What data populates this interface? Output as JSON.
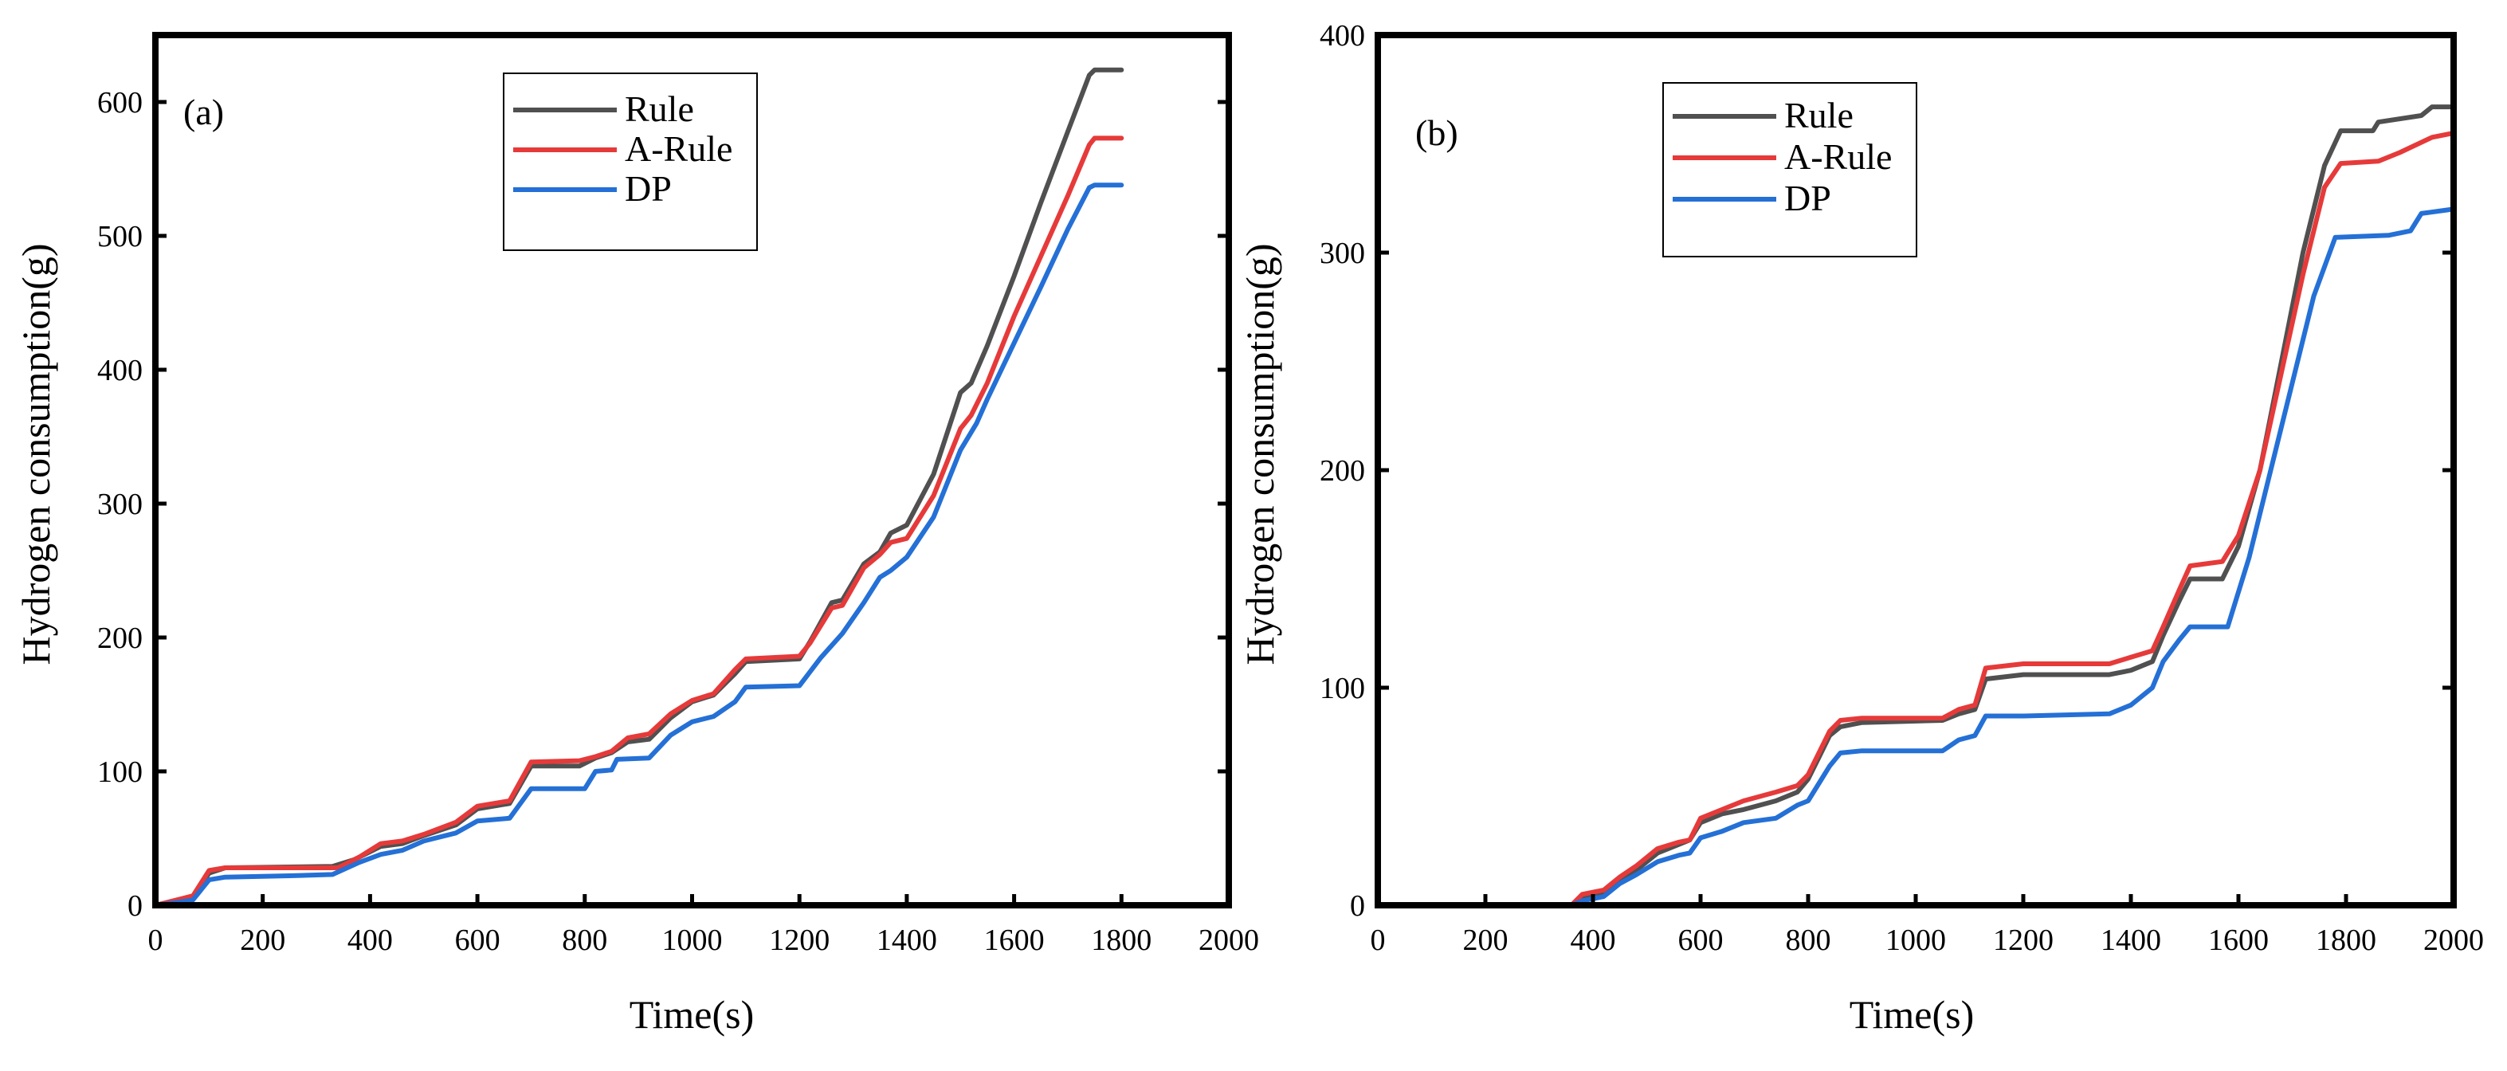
{
  "chart_data": [
    {
      "type": "line",
      "panel_label": "(a)",
      "xlabel": "Time(s)",
      "ylabel": "Hydrogen consumption(g)",
      "xlim": [
        0,
        2000
      ],
      "ylim": [
        0,
        650
      ],
      "xticks": [
        0,
        200,
        400,
        600,
        800,
        1000,
        1200,
        1400,
        1600,
        1800,
        2000
      ],
      "yticks": [
        0,
        100,
        200,
        300,
        400,
        500,
        600
      ],
      "legend_position": "top-center",
      "series": [
        {
          "name": "Rule",
          "color": "#505050",
          "points": [
            [
              0,
              0
            ],
            [
              40,
              3
            ],
            [
              70,
              6
            ],
            [
              100,
              24
            ],
            [
              130,
              28
            ],
            [
              330,
              29
            ],
            [
              370,
              34
            ],
            [
              420,
              44
            ],
            [
              460,
              46
            ],
            [
              500,
              52
            ],
            [
              560,
              60
            ],
            [
              600,
              72
            ],
            [
              660,
              76
            ],
            [
              700,
              104
            ],
            [
              790,
              104
            ],
            [
              820,
              110
            ],
            [
              850,
              114
            ],
            [
              880,
              122
            ],
            [
              920,
              124
            ],
            [
              960,
              140
            ],
            [
              1000,
              152
            ],
            [
              1040,
              157
            ],
            [
              1080,
              173
            ],
            [
              1100,
              182
            ],
            [
              1200,
              184
            ],
            [
              1220,
              197
            ],
            [
              1260,
              226
            ],
            [
              1280,
              228
            ],
            [
              1320,
              255
            ],
            [
              1350,
              264
            ],
            [
              1370,
              278
            ],
            [
              1400,
              284
            ],
            [
              1450,
              322
            ],
            [
              1500,
              383
            ],
            [
              1520,
              390
            ],
            [
              1550,
              418
            ],
            [
              1600,
              470
            ],
            [
              1650,
              525
            ],
            [
              1700,
              578
            ],
            [
              1740,
              620
            ],
            [
              1750,
              624
            ],
            [
              1800,
              624
            ]
          ]
        },
        {
          "name": "A-Rule",
          "color": "#e63a3a",
          "points": [
            [
              0,
              0
            ],
            [
              40,
              4
            ],
            [
              70,
              7
            ],
            [
              100,
              26
            ],
            [
              130,
              28
            ],
            [
              340,
              28
            ],
            [
              380,
              36
            ],
            [
              420,
              46
            ],
            [
              460,
              48
            ],
            [
              500,
              53
            ],
            [
              560,
              62
            ],
            [
              600,
              74
            ],
            [
              660,
              78
            ],
            [
              700,
              107
            ],
            [
              790,
              108
            ],
            [
              820,
              111
            ],
            [
              850,
              115
            ],
            [
              880,
              125
            ],
            [
              920,
              128
            ],
            [
              960,
              143
            ],
            [
              1000,
              153
            ],
            [
              1040,
              158
            ],
            [
              1080,
              176
            ],
            [
              1100,
              184
            ],
            [
              1200,
              186
            ],
            [
              1220,
              196
            ],
            [
              1260,
              222
            ],
            [
              1280,
              224
            ],
            [
              1320,
              252
            ],
            [
              1350,
              262
            ],
            [
              1370,
              271
            ],
            [
              1400,
              274
            ],
            [
              1450,
              306
            ],
            [
              1500,
              356
            ],
            [
              1520,
              366
            ],
            [
              1550,
              390
            ],
            [
              1600,
              440
            ],
            [
              1650,
              485
            ],
            [
              1700,
              530
            ],
            [
              1740,
              568
            ],
            [
              1750,
              573
            ],
            [
              1800,
              573
            ]
          ]
        },
        {
          "name": "DP",
          "color": "#2470d6",
          "points": [
            [
              0,
              0
            ],
            [
              40,
              2
            ],
            [
              70,
              4
            ],
            [
              100,
              19
            ],
            [
              130,
              21
            ],
            [
              250,
              22
            ],
            [
              330,
              23
            ],
            [
              380,
              32
            ],
            [
              420,
              38
            ],
            [
              460,
              41
            ],
            [
              500,
              48
            ],
            [
              560,
              54
            ],
            [
              600,
              63
            ],
            [
              660,
              65
            ],
            [
              700,
              87
            ],
            [
              800,
              87
            ],
            [
              820,
              100
            ],
            [
              850,
              101
            ],
            [
              860,
              109
            ],
            [
              920,
              110
            ],
            [
              960,
              127
            ],
            [
              1000,
              137
            ],
            [
              1040,
              141
            ],
            [
              1080,
              152
            ],
            [
              1100,
              163
            ],
            [
              1200,
              164
            ],
            [
              1240,
              185
            ],
            [
              1280,
              203
            ],
            [
              1320,
              226
            ],
            [
              1350,
              245
            ],
            [
              1370,
              250
            ],
            [
              1400,
              260
            ],
            [
              1450,
              290
            ],
            [
              1500,
              340
            ],
            [
              1530,
              360
            ],
            [
              1550,
              378
            ],
            [
              1600,
              420
            ],
            [
              1650,
              462
            ],
            [
              1700,
              505
            ],
            [
              1740,
              536
            ],
            [
              1750,
              538
            ],
            [
              1800,
              538
            ]
          ]
        }
      ]
    },
    {
      "type": "line",
      "panel_label": "(b)",
      "xlabel": "Time(s)",
      "ylabel": "Hydrogen consumption(g)",
      "xlim": [
        0,
        2000
      ],
      "ylim": [
        0,
        400
      ],
      "xticks": [
        0,
        200,
        400,
        600,
        800,
        1000,
        1200,
        1400,
        1600,
        1800,
        2000
      ],
      "yticks": [
        0,
        100,
        200,
        300,
        400
      ],
      "legend_position": "top-center",
      "series": [
        {
          "name": "Rule",
          "color": "#505050",
          "points": [
            [
              0,
              0
            ],
            [
              360,
              0
            ],
            [
              380,
              4
            ],
            [
              420,
              6
            ],
            [
              450,
              12
            ],
            [
              480,
              16
            ],
            [
              520,
              24
            ],
            [
              560,
              28
            ],
            [
              580,
              30
            ],
            [
              600,
              38
            ],
            [
              640,
              42
            ],
            [
              680,
              44
            ],
            [
              740,
              48
            ],
            [
              780,
              52
            ],
            [
              800,
              58
            ],
            [
              840,
              78
            ],
            [
              860,
              82
            ],
            [
              900,
              84
            ],
            [
              1050,
              85
            ],
            [
              1080,
              88
            ],
            [
              1110,
              90
            ],
            [
              1130,
              104
            ],
            [
              1200,
              106
            ],
            [
              1360,
              106
            ],
            [
              1400,
              108
            ],
            [
              1440,
              112
            ],
            [
              1460,
              124
            ],
            [
              1490,
              140
            ],
            [
              1510,
              150
            ],
            [
              1570,
              150
            ],
            [
              1600,
              165
            ],
            [
              1640,
              200
            ],
            [
              1680,
              250
            ],
            [
              1720,
              300
            ],
            [
              1760,
              340
            ],
            [
              1790,
              356
            ],
            [
              1850,
              356
            ],
            [
              1860,
              360
            ],
            [
              1940,
              363
            ],
            [
              1960,
              367
            ],
            [
              2000,
              367
            ]
          ]
        },
        {
          "name": "A-Rule",
          "color": "#e63a3a",
          "points": [
            [
              0,
              0
            ],
            [
              360,
              0
            ],
            [
              380,
              5
            ],
            [
              420,
              7
            ],
            [
              450,
              13
            ],
            [
              480,
              18
            ],
            [
              520,
              26
            ],
            [
              560,
              29
            ],
            [
              580,
              30
            ],
            [
              600,
              40
            ],
            [
              640,
              44
            ],
            [
              680,
              48
            ],
            [
              740,
              52
            ],
            [
              780,
              55
            ],
            [
              800,
              60
            ],
            [
              840,
              80
            ],
            [
              860,
              85
            ],
            [
              900,
              86
            ],
            [
              1050,
              86
            ],
            [
              1080,
              90
            ],
            [
              1110,
              92
            ],
            [
              1130,
              109
            ],
            [
              1200,
              111
            ],
            [
              1360,
              111
            ],
            [
              1400,
              114
            ],
            [
              1440,
              117
            ],
            [
              1460,
              128
            ],
            [
              1490,
              145
            ],
            [
              1510,
              156
            ],
            [
              1570,
              158
            ],
            [
              1600,
              170
            ],
            [
              1640,
              200
            ],
            [
              1680,
              245
            ],
            [
              1720,
              290
            ],
            [
              1760,
              330
            ],
            [
              1790,
              341
            ],
            [
              1860,
              342
            ],
            [
              1900,
              346
            ],
            [
              1960,
              353
            ],
            [
              2000,
              355
            ]
          ]
        },
        {
          "name": "DP",
          "color": "#2470d6",
          "points": [
            [
              0,
              0
            ],
            [
              360,
              0
            ],
            [
              380,
              2
            ],
            [
              420,
              4
            ],
            [
              450,
              10
            ],
            [
              480,
              14
            ],
            [
              520,
              20
            ],
            [
              560,
              23
            ],
            [
              580,
              24
            ],
            [
              600,
              31
            ],
            [
              640,
              34
            ],
            [
              680,
              38
            ],
            [
              740,
              40
            ],
            [
              780,
              46
            ],
            [
              800,
              48
            ],
            [
              840,
              64
            ],
            [
              860,
              70
            ],
            [
              900,
              71
            ],
            [
              1050,
              71
            ],
            [
              1080,
              76
            ],
            [
              1110,
              78
            ],
            [
              1130,
              87
            ],
            [
              1200,
              87
            ],
            [
              1360,
              88
            ],
            [
              1400,
              92
            ],
            [
              1440,
              100
            ],
            [
              1460,
              112
            ],
            [
              1490,
              122
            ],
            [
              1510,
              128
            ],
            [
              1580,
              128
            ],
            [
              1620,
              160
            ],
            [
              1660,
              200
            ],
            [
              1700,
              240
            ],
            [
              1740,
              280
            ],
            [
              1780,
              307
            ],
            [
              1880,
              308
            ],
            [
              1920,
              310
            ],
            [
              1940,
              318
            ],
            [
              2000,
              320
            ]
          ]
        }
      ]
    }
  ]
}
